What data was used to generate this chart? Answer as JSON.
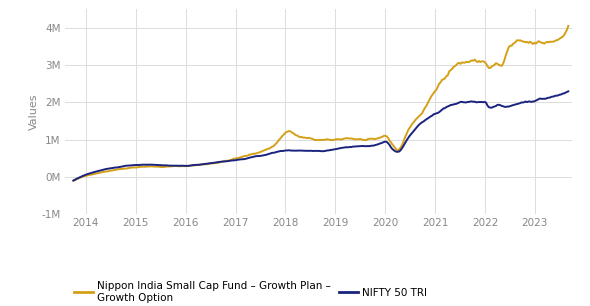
{
  "ylabel": "Values",
  "ylim": [
    -1000000,
    4500000
  ],
  "yticks": [
    -1000000,
    0,
    1000000,
    2000000,
    3000000,
    4000000
  ],
  "ytick_labels": [
    "-1M",
    "0M",
    "1M",
    "2M",
    "3M",
    "4M"
  ],
  "xlim_start": 2013.58,
  "xlim_end": 2023.75,
  "xticks": [
    2014,
    2015,
    2016,
    2017,
    2018,
    2019,
    2020,
    2021,
    2022,
    2023
  ],
  "line1_color": "#D4A017",
  "line2_color": "#1A237E",
  "line1_label": "Nippon India Small Cap Fund – Growth Plan –\nGrowth Option",
  "line2_label": "NIFTY 50 TRI",
  "line_width": 1.4,
  "bg_color": "#FFFFFF",
  "grid_color": "#DCDCDC",
  "tick_color": "#888888",
  "tick_fontsize": 7.5,
  "ylabel_fontsize": 8,
  "legend_fontsize": 7.5
}
